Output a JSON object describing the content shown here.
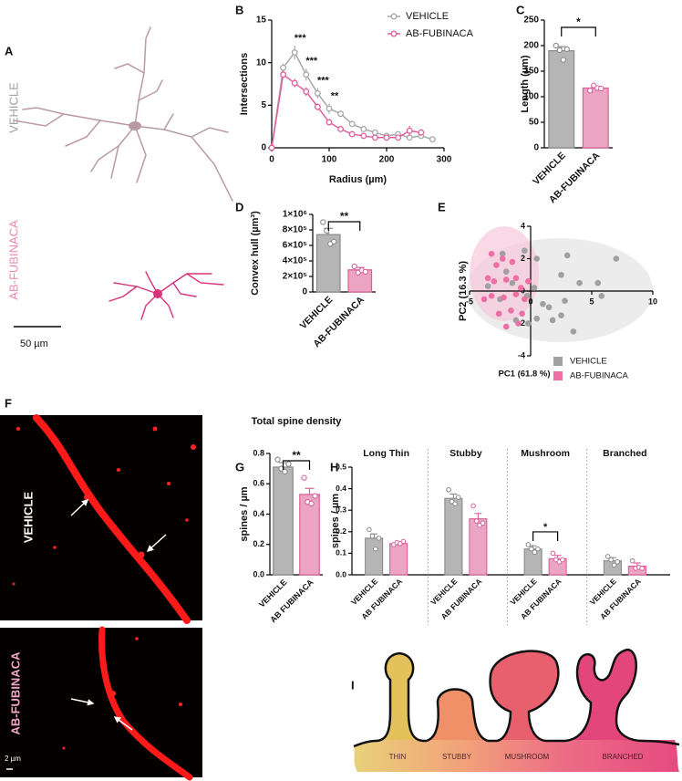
{
  "figure": {
    "letters": [
      "A",
      "B",
      "C",
      "D",
      "E",
      "F",
      "G",
      "H",
      "I"
    ],
    "A": {
      "labels": [
        "VEHICLE",
        "AB-FUBINACA"
      ],
      "scale_bar": "50 µm"
    },
    "F": {
      "labels": [
        "VEHICLE",
        "AB-FUBINACA"
      ],
      "scale_bar": "2 µm"
    },
    "I": {
      "labels": [
        "THIN",
        "STUBBY",
        "MUSHROOM",
        "BRANCHED"
      ]
    }
  },
  "chart_data": [
    {
      "type": "line",
      "xlabel": "Radius (µm)",
      "ylabel": "Intersections",
      "x": [
        0,
        20,
        40,
        60,
        80,
        100,
        120,
        140,
        160,
        180,
        200,
        220,
        240,
        260,
        280
      ],
      "xlim": [
        0,
        300
      ],
      "xticks": [
        0,
        100,
        200,
        300
      ],
      "ylim": [
        0,
        15
      ],
      "yticks": [
        0,
        5,
        10,
        15
      ],
      "legend": "top-right",
      "series": [
        {
          "name": "VEHICLE",
          "color": "#a8a8a8",
          "values": [
            0,
            9.4,
            11.2,
            8.6,
            6.4,
            4.6,
            4.0,
            2.8,
            2.2,
            1.8,
            1.4,
            1.6,
            1.2,
            1.4,
            1.0
          ],
          "errors": [
            0,
            0.5,
            0.8,
            0.7,
            0.6,
            0.6,
            0.4,
            0.3,
            0.3,
            0.3,
            0.3,
            0.3,
            0.3,
            0.3,
            0.2
          ]
        },
        {
          "name": "AB-FUBINACA",
          "color": "#e0609f",
          "values": [
            0,
            8.6,
            7.6,
            6.6,
            4.8,
            3.0,
            2.2,
            1.6,
            1.4,
            1.2,
            1.2,
            1.2,
            2.0,
            1.8,
            null
          ],
          "errors": [
            0,
            0.4,
            0.5,
            0.5,
            0.4,
            0.3,
            0.3,
            0.2,
            0.2,
            0.2,
            0.2,
            0.2,
            0.6,
            0.4,
            null
          ]
        }
      ],
      "annotations": [
        {
          "x": 40,
          "text": "***"
        },
        {
          "x": 60,
          "text": "***"
        },
        {
          "x": 80,
          "text": "***"
        },
        {
          "x": 100,
          "text": "**"
        }
      ]
    },
    {
      "type": "bar",
      "ylabel": "Length (µm)",
      "categories": [
        "VEHICLE",
        "AB-FUBINACA"
      ],
      "values": [
        190,
        117
      ],
      "errors": [
        8,
        3
      ],
      "points": [
        [
          200,
          191,
          172,
          193
        ],
        [
          112,
          122,
          117,
          116
        ]
      ],
      "colors": [
        "#b5b5b5",
        "#eba4c2"
      ],
      "edge_colors": [
        "#8a8a8a",
        "#d9609a"
      ],
      "ylim": [
        0,
        250
      ],
      "yticks": [
        0,
        50,
        100,
        150,
        200,
        250
      ],
      "significance": "*"
    },
    {
      "type": "bar",
      "ylabel": "Convex hull (µm³)",
      "categories": [
        "VEHICLE",
        "AB-FUBINACA"
      ],
      "values": [
        740000,
        285000
      ],
      "errors": [
        80000,
        30000
      ],
      "points": [
        [
          900000,
          790000,
          620000,
          650000
        ],
        [
          330000,
          250000,
          280000,
          260000
        ]
      ],
      "colors": [
        "#b5b5b5",
        "#eba4c2"
      ],
      "edge_colors": [
        "#8a8a8a",
        "#d9609a"
      ],
      "ylim": [
        0,
        1000000
      ],
      "yticks": [
        0,
        {
          "value": 200000,
          "label": "2×10⁵"
        },
        {
          "value": 400000,
          "label": "4×10⁵"
        },
        {
          "value": 600000,
          "label": "6×10⁵"
        },
        {
          "value": 800000,
          "label": "8×10⁵"
        },
        {
          "value": 1000000,
          "label": "1×10⁶"
        }
      ],
      "significance": "**"
    },
    {
      "type": "scatter",
      "xlabel": "PC1 (61.8 %)",
      "ylabel": "PC2 (16.3 %)",
      "xlim": [
        -5,
        10
      ],
      "xticks": [
        -5,
        0,
        5,
        10
      ],
      "ylim": [
        -4,
        4
      ],
      "yticks": [
        -4,
        -2,
        0,
        2,
        4
      ],
      "legend": "bottom",
      "series": [
        {
          "name": "VEHICLE",
          "color": "#a0a0a0",
          "x": [
            -2,
            -0.5,
            -1.5,
            0.5,
            1,
            3,
            4,
            5.5,
            7,
            5.8,
            2.5,
            2.8,
            1.5,
            -1.2,
            -0.2,
            2.5,
            1.8,
            3.5,
            0.5,
            -0.3,
            0.3,
            -3.5,
            -2.3,
            -2.5
          ],
          "y": [
            1.2,
            2.5,
            0.5,
            2,
            -0.8,
            2.2,
            0.5,
            0.5,
            2,
            -0.3,
            1,
            -0.6,
            -1,
            -1.8,
            -2,
            -1.5,
            -1.8,
            -2.5,
            -1.7,
            -0.3,
            0.2,
            0.3,
            2.3,
            -0.5
          ]
        },
        {
          "name": "AB-FUBINACA",
          "color": "#ee6fa6",
          "x": [
            -3.2,
            -2.8,
            -2.3,
            -1.5,
            -3.5,
            -3.0,
            -2.0,
            -1.2,
            -0.8,
            -3.2,
            -2.2,
            -1.2,
            -0.5,
            -3.8,
            -2.6,
            -1.6,
            -0.7,
            -2.0,
            -0.2,
            -1.0
          ],
          "y": [
            2.3,
            1.6,
            2.0,
            1.8,
            0.8,
            0.6,
            0.7,
            0.8,
            0.2,
            -0.3,
            -0.4,
            -0.2,
            -0.5,
            -0.5,
            -1.4,
            -1.2,
            -1.4,
            -2.2,
            0.6,
            -2.0
          ]
        }
      ]
    },
    {
      "type": "bar",
      "title": "Total spine density",
      "ylabel": "spines / µm",
      "categories": [
        "VEHICLE",
        "AB FUBINACA"
      ],
      "values": [
        0.71,
        0.53
      ],
      "errors": [
        0.03,
        0.04
      ],
      "points": [
        [
          0.76,
          0.7,
          0.68,
          0.73
        ],
        [
          0.64,
          0.48,
          0.47,
          0.52
        ]
      ],
      "colors": [
        "#b5b5b5",
        "#eba4c2"
      ],
      "edge_colors": [
        "#8a8a8a",
        "#d9609a"
      ],
      "ylim": [
        0,
        0.8
      ],
      "yticks": [
        {
          "value": 0,
          "label": "0.0"
        },
        0.2,
        0.4,
        0.6,
        0.8
      ],
      "significance": "**"
    },
    {
      "type": "grouped_bar",
      "ylabel": "spines / µm",
      "categories": [
        "Long Thin",
        "Stubby",
        "Mushroom",
        "Branched"
      ],
      "ylim": [
        0,
        0.5
      ],
      "yticks": [
        {
          "value": 0,
          "label": "0.0"
        },
        0.1,
        0.2,
        0.3,
        0.4,
        0.5
      ],
      "significance": [
        null,
        null,
        "*",
        null
      ],
      "series": [
        {
          "name": "VEHICLE",
          "color": "#b5b5b5",
          "edge_color": "#8a8a8a",
          "values": [
            0.17,
            0.355,
            0.12,
            0.065
          ],
          "errors": [
            0.02,
            0.02,
            0.015,
            0.015
          ],
          "points": [
            [
              0.21,
              0.18,
              0.12,
              0.17
            ],
            [
              0.395,
              0.34,
              0.33,
              0.36
            ],
            [
              0.14,
              0.12,
              0.105,
              0.12
            ],
            [
              0.085,
              0.07,
              0.045,
              0.06
            ]
          ]
        },
        {
          "name": "AB FUBINACA",
          "color": "#eba4c2",
          "edge_color": "#d9609a",
          "values": [
            0.145,
            0.26,
            0.075,
            0.04
          ],
          "errors": [
            0.005,
            0.025,
            0.015,
            0.015
          ],
          "points": [
            [
              0.14,
              0.15,
              0.145,
              0.155
            ],
            [
              0.32,
              0.25,
              0.23,
              0.24
            ],
            [
              0.1,
              0.07,
              0.06,
              0.07
            ],
            [
              0.065,
              0.03,
              0.035,
              0.03
            ]
          ]
        }
      ]
    }
  ]
}
